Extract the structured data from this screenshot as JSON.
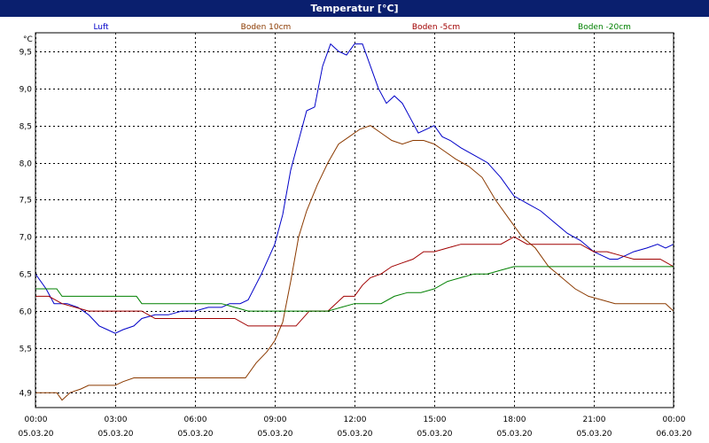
{
  "window": {
    "title": "Temperatur [°C]"
  },
  "chart_data": {
    "type": "line",
    "title": "Temperatur [°C]",
    "ylabel": "°C",
    "xlabel": "",
    "ylim": [
      4.7,
      9.75
    ],
    "xlim": [
      0,
      24
    ],
    "grid": true,
    "legend_position": "top",
    "y_ticks": [
      {
        "value": 4.9,
        "label": "4,9"
      },
      {
        "value": 5.5,
        "label": "5,5"
      },
      {
        "value": 6.0,
        "label": "6,0"
      },
      {
        "value": 6.5,
        "label": "6,5"
      },
      {
        "value": 7.0,
        "label": "7,0"
      },
      {
        "value": 7.5,
        "label": "7,5"
      },
      {
        "value": 8.0,
        "label": "8,0"
      },
      {
        "value": 8.5,
        "label": "8,5"
      },
      {
        "value": 9.0,
        "label": "9,0"
      },
      {
        "value": 9.5,
        "label": "9,5"
      }
    ],
    "x_ticks": [
      {
        "value": 0,
        "time": "00:00",
        "date": "05.03.20"
      },
      {
        "value": 3,
        "time": "03:00",
        "date": "05.03.20"
      },
      {
        "value": 6,
        "time": "06:00",
        "date": "05.03.20"
      },
      {
        "value": 9,
        "time": "09:00",
        "date": "05.03.20"
      },
      {
        "value": 12,
        "time": "12:00",
        "date": "05.03.20"
      },
      {
        "value": 15,
        "time": "15:00",
        "date": "05.03.20"
      },
      {
        "value": 18,
        "time": "18:00",
        "date": "05.03.20"
      },
      {
        "value": 21,
        "time": "21:00",
        "date": "05.03.20"
      },
      {
        "value": 24,
        "time": "00:00",
        "date": "06.03.20"
      }
    ],
    "series": [
      {
        "name": "Luft",
        "color": "#0000c8",
        "x": [
          0,
          0.4,
          0.7,
          1.2,
          1.6,
          2.0,
          2.4,
          2.7,
          3.0,
          3.3,
          3.7,
          4.0,
          4.5,
          5.0,
          5.5,
          6.0,
          6.5,
          7.0,
          7.3,
          7.7,
          8.0,
          8.5,
          9.0,
          9.3,
          9.6,
          9.9,
          10.2,
          10.5,
          10.8,
          11.1,
          11.4,
          11.7,
          12.0,
          12.3,
          12.6,
          12.9,
          13.2,
          13.5,
          13.8,
          14.1,
          14.4,
          14.7,
          15.0,
          15.3,
          15.6,
          16.0,
          16.5,
          17.0,
          17.5,
          18.0,
          18.5,
          19.0,
          19.5,
          20.0,
          20.5,
          21.0,
          21.3,
          21.6,
          21.9,
          22.2,
          22.5,
          23.0,
          23.4,
          23.7,
          24.0
        ],
        "y": [
          6.5,
          6.3,
          6.1,
          6.1,
          6.05,
          5.95,
          5.8,
          5.75,
          5.7,
          5.75,
          5.8,
          5.9,
          5.95,
          5.95,
          6.0,
          6.0,
          6.05,
          6.05,
          6.1,
          6.1,
          6.15,
          6.5,
          6.9,
          7.3,
          7.9,
          8.3,
          8.7,
          8.75,
          9.3,
          9.6,
          9.5,
          9.45,
          9.6,
          9.6,
          9.3,
          9.0,
          8.8,
          8.9,
          8.8,
          8.6,
          8.4,
          8.45,
          8.5,
          8.35,
          8.3,
          8.2,
          8.1,
          8.0,
          7.8,
          7.55,
          7.45,
          7.35,
          7.2,
          7.05,
          6.95,
          6.8,
          6.75,
          6.7,
          6.7,
          6.75,
          6.8,
          6.85,
          6.9,
          6.85,
          6.9
        ]
      },
      {
        "name": "Boden 10cm",
        "color": "#8b3a00",
        "x": [
          0,
          0.8,
          1.0,
          1.3,
          1.7,
          2.0,
          2.5,
          3.0,
          3.3,
          3.7,
          4.0,
          5.0,
          6.0,
          7.0,
          7.5,
          7.9,
          8.3,
          8.7,
          9.0,
          9.3,
          9.6,
          9.9,
          10.2,
          10.6,
          11.0,
          11.4,
          11.8,
          12.2,
          12.6,
          13.0,
          13.4,
          13.8,
          14.2,
          14.6,
          15.0,
          15.4,
          15.8,
          16.3,
          16.8,
          17.3,
          17.8,
          18.3,
          18.8,
          19.3,
          19.8,
          20.3,
          20.8,
          21.3,
          21.8,
          22.3,
          22.8,
          23.3,
          23.7,
          24.0
        ],
        "y": [
          4.9,
          4.9,
          4.8,
          4.9,
          4.95,
          5.0,
          5.0,
          5.0,
          5.05,
          5.1,
          5.1,
          5.1,
          5.1,
          5.1,
          5.1,
          5.1,
          5.3,
          5.45,
          5.6,
          5.85,
          6.4,
          7.0,
          7.35,
          7.7,
          8.0,
          8.25,
          8.35,
          8.45,
          8.5,
          8.4,
          8.3,
          8.25,
          8.3,
          8.3,
          8.25,
          8.15,
          8.05,
          7.95,
          7.8,
          7.5,
          7.25,
          7.0,
          6.85,
          6.6,
          6.45,
          6.3,
          6.2,
          6.15,
          6.1,
          6.1,
          6.1,
          6.1,
          6.1,
          6.0
        ]
      },
      {
        "name": "Boden -5cm",
        "color": "#a00000",
        "x": [
          0,
          0.5,
          1.0,
          1.5,
          2.0,
          3.0,
          4.0,
          4.5,
          5.0,
          6.0,
          7.0,
          7.5,
          8.0,
          9.0,
          9.8,
          10.3,
          11.0,
          11.3,
          11.6,
          12.0,
          12.3,
          12.6,
          13.0,
          13.4,
          13.8,
          14.2,
          14.6,
          15.0,
          15.5,
          16.0,
          16.5,
          17.0,
          17.5,
          18.0,
          18.5,
          19.0,
          19.5,
          20.0,
          20.5,
          21.0,
          21.5,
          22.0,
          22.5,
          23.0,
          23.5,
          24.0
        ],
        "y": [
          6.2,
          6.2,
          6.1,
          6.05,
          6.0,
          6.0,
          6.0,
          5.9,
          5.9,
          5.9,
          5.9,
          5.9,
          5.8,
          5.8,
          5.8,
          6.0,
          6.0,
          6.1,
          6.2,
          6.2,
          6.35,
          6.45,
          6.5,
          6.6,
          6.65,
          6.7,
          6.8,
          6.8,
          6.85,
          6.9,
          6.9,
          6.9,
          6.9,
          7.0,
          6.9,
          6.9,
          6.9,
          6.9,
          6.9,
          6.8,
          6.8,
          6.75,
          6.7,
          6.7,
          6.7,
          6.6
        ]
      },
      {
        "name": "Boden -20cm",
        "color": "#008000",
        "x": [
          0,
          0.8,
          1.0,
          2.0,
          3.0,
          3.8,
          4.0,
          5.0,
          6.0,
          7.0,
          8.0,
          9.0,
          10.0,
          11.0,
          11.5,
          12.0,
          12.5,
          13.0,
          13.5,
          14.0,
          14.5,
          15.0,
          15.5,
          16.0,
          16.5,
          17.0,
          17.5,
          18.0,
          18.5,
          19.0,
          19.5,
          20.0,
          20.5,
          21.0,
          21.5,
          22.0,
          22.5,
          23.0,
          23.5,
          24.0
        ],
        "y": [
          6.3,
          6.3,
          6.2,
          6.2,
          6.2,
          6.2,
          6.1,
          6.1,
          6.1,
          6.1,
          6.0,
          6.0,
          6.0,
          6.0,
          6.05,
          6.1,
          6.1,
          6.1,
          6.2,
          6.25,
          6.25,
          6.3,
          6.4,
          6.45,
          6.5,
          6.5,
          6.55,
          6.6,
          6.6,
          6.6,
          6.6,
          6.6,
          6.6,
          6.6,
          6.6,
          6.6,
          6.6,
          6.6,
          6.6,
          6.6
        ]
      }
    ]
  }
}
